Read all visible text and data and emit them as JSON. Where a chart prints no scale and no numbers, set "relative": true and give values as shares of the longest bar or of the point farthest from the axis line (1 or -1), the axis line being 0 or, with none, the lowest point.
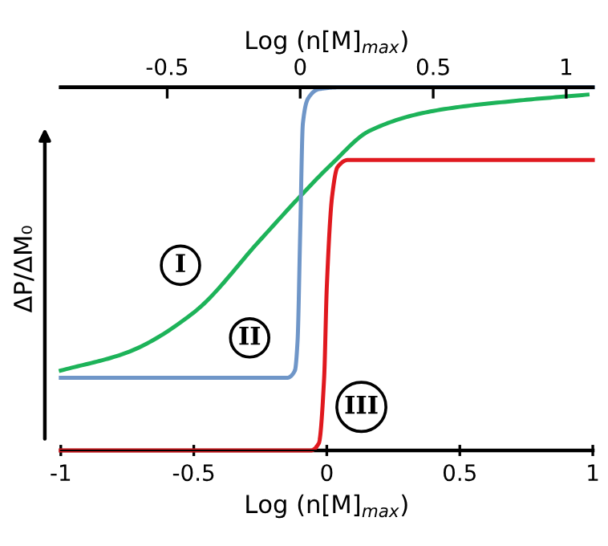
{
  "chart_data": {
    "type": "line",
    "relative": true,
    "xlabel": "Log (n[M]$_{max}$)",
    "x2label": "Log (n[M]$_{max}$)",
    "ylabel": "ΔP/ΔM₀",
    "xlim": [
      -1,
      1
    ],
    "xticks": [
      -1,
      -0.5,
      0,
      0.5,
      1
    ],
    "x2lim": [
      -0.9,
      1.1
    ],
    "x2ticks": [
      -0.5,
      0,
      0.5,
      1
    ],
    "grid": false,
    "tick_labels": "x",
    "line_style": "solid",
    "marker": "none",
    "series": [
      {
        "color": "#1db359",
        "x": [
          -1,
          -0.75,
          -0.5,
          -0.25,
          -0.1,
          0.02,
          0.16,
          0.4,
          0.74,
          0.98
        ],
        "values": [
          0.22,
          0.27,
          0.38,
          0.58,
          0.7,
          0.79,
          0.88,
          0.935,
          0.965,
          0.98
        ]
      },
      {
        "color": "#6f96c8",
        "x": [
          -1,
          -0.15,
          -0.12,
          -0.11,
          -0.1,
          -0.09,
          -0.07,
          -0.03,
          0.05,
          1
        ],
        "values": [
          0.2,
          0.2,
          0.22,
          0.3,
          0.6,
          0.9,
          0.97,
          0.995,
          1,
          1
        ]
      },
      {
        "color": "#e0191f",
        "x": [
          -1,
          -0.06,
          -0.03,
          -0.01,
          0,
          0.02,
          0.04,
          0.08,
          1
        ],
        "values": [
          0,
          0,
          0.02,
          0.2,
          0.45,
          0.7,
          0.78,
          0.8,
          0.8
        ]
      }
    ],
    "annotations": [
      {
        "text": "I",
        "x": -0.55,
        "y": 0.51
      },
      {
        "text": "II",
        "x": -0.29,
        "y": 0.31
      },
      {
        "text": "III",
        "x": 0.13,
        "y": 0.12
      }
    ]
  }
}
